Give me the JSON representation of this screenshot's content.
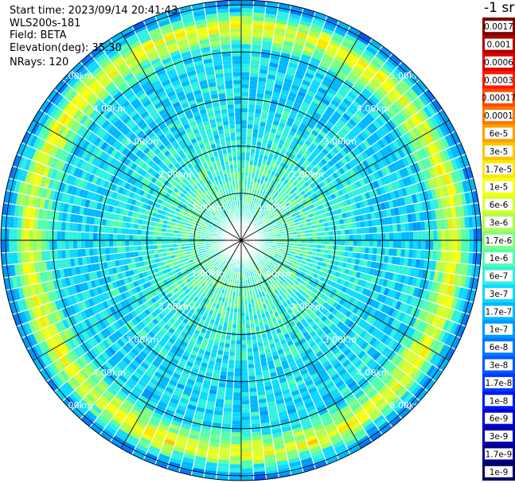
{
  "info": {
    "start_time": "Start time: 2023/09/14 20:41:43",
    "instrument": "WLS200s-181",
    "field": "Field: BETA",
    "elevation": "Elevation(deg): 35.30",
    "nrays": "NRays: 120"
  },
  "colorbar": {
    "unit": "-1 sr",
    "labels": [
      "0.0017",
      "0.001",
      "0.0006",
      "0.0003",
      "0.00017",
      "0.0001",
      "6e-5",
      "3e-5",
      "1.7e-5",
      "1e-5",
      "6e-6",
      "3e-6",
      "1.7e-6",
      "1e-6",
      "6e-7",
      "3e-7",
      "1.7e-7",
      "1e-7",
      "6e-8",
      "3e-8",
      "1.7e-8",
      "1e-8",
      "6e-9",
      "3e-9",
      "1.7e-9",
      "1e-9"
    ],
    "colors": [
      "#7a0000",
      "#b00000",
      "#e00000",
      "#ff1a00",
      "#ff4a00",
      "#ff7800",
      "#ffa000",
      "#ffc400",
      "#ffe600",
      "#f5ff10",
      "#d8ff30",
      "#b0ff50",
      "#80ff80",
      "#50ffb0",
      "#30f0e0",
      "#10d8ff",
      "#00b8ff",
      "#0098ff",
      "#0078ff",
      "#0058ff",
      "#0038ff",
      "#0018f0",
      "#0000d8",
      "#0000b0",
      "#000088",
      "#000060"
    ]
  },
  "chart_data": {
    "type": "heatmap",
    "projection": "polar-ppi",
    "title": "",
    "nrays": 120,
    "range_unit": "km",
    "ring_labels": [
      "1.00km",
      "2.00km",
      "3.00km",
      "4.00km",
      "5.00km"
    ],
    "ring_km": [
      1,
      2,
      3,
      4,
      5
    ],
    "max_range_km": 5.1,
    "spoke_step_deg": 30,
    "range_profile": [
      {
        "km": 0.0,
        "value": "6e-7"
      },
      {
        "km": 1.0,
        "value": "1e-6"
      },
      {
        "km": 2.0,
        "value": "6e-7"
      },
      {
        "km": 3.0,
        "value": "3e-7"
      },
      {
        "km": 4.0,
        "value": "3e-7"
      },
      {
        "km": 4.55,
        "value": "1e-5"
      },
      {
        "km": 5.0,
        "value": "1e-7"
      }
    ]
  }
}
